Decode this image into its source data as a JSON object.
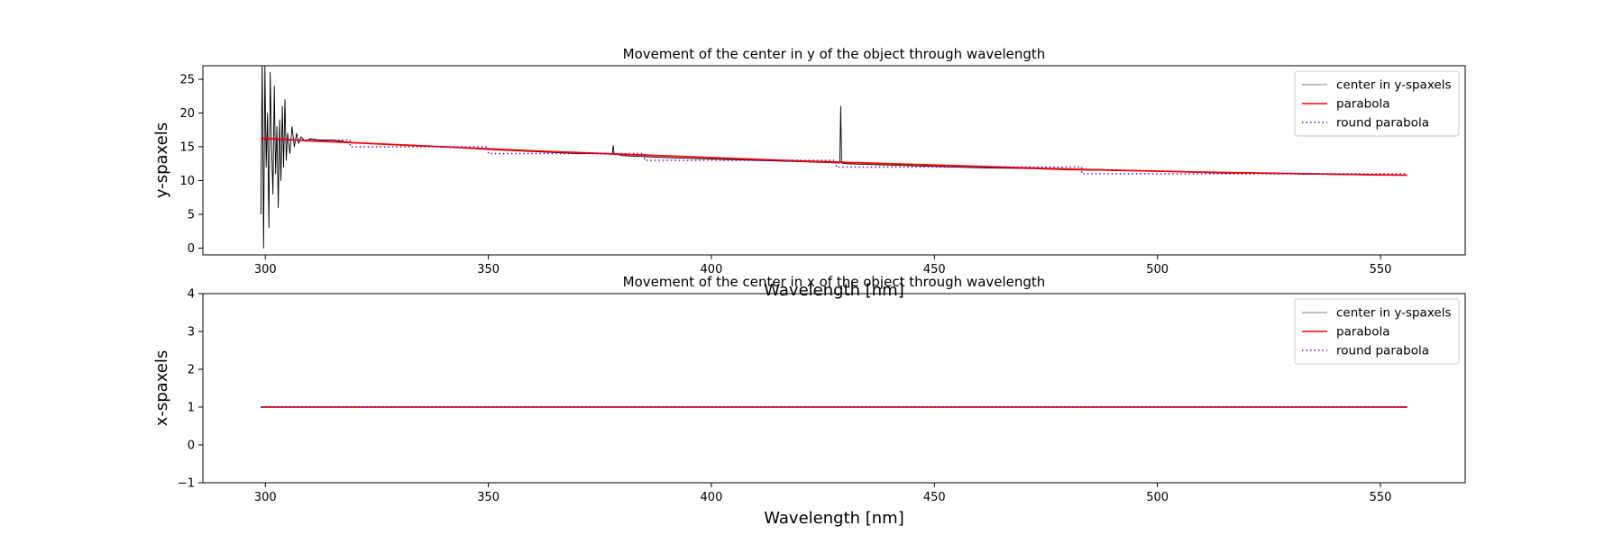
{
  "chart_data": [
    {
      "type": "line",
      "title": "Movement of the center in y of the object through wavelength",
      "xlabel": "Wavelength [nm]",
      "ylabel": "y-spaxels",
      "xlim": [
        286,
        569
      ],
      "ylim": [
        -1,
        27
      ],
      "xticks": [
        300,
        350,
        400,
        450,
        500,
        550
      ],
      "yticks": [
        0,
        5,
        10,
        15,
        20,
        25
      ],
      "grid": false,
      "legend_position": "top-right",
      "series": [
        {
          "name": "center in y-spaxels",
          "color": "#000000",
          "style": "solid",
          "x": [
            299.0,
            299.3,
            299.6,
            299.9,
            300.2,
            300.5,
            300.8,
            301.1,
            301.4,
            301.7,
            302.0,
            302.3,
            302.6,
            302.9,
            303.2,
            303.5,
            303.8,
            304.1,
            304.4,
            304.7,
            305.0,
            305.5,
            306.0,
            306.5,
            307.0,
            307.5,
            308.0,
            309.0,
            310.0,
            312.0,
            315.0,
            320.0,
            330.0,
            340.0,
            350.0,
            360.0,
            370.0,
            377.8,
            378.0,
            378.2,
            380.0,
            390.0,
            400.0,
            410.0,
            420.0,
            428.8,
            429.0,
            429.2,
            430.0,
            440.0,
            450.0,
            460.0,
            470.0,
            480.0,
            490.0,
            500.0,
            510.0,
            515.0,
            520.0,
            530.0,
            540.0,
            550.0,
            556.0
          ],
          "values": [
            5,
            28,
            0,
            27,
            12,
            20,
            3,
            26,
            15,
            8,
            24,
            11,
            18,
            6,
            19,
            10,
            21,
            12,
            22,
            13,
            17,
            14,
            18,
            15,
            17,
            15.5,
            16.5,
            15.8,
            16.2,
            16.0,
            16.0,
            15.6,
            15.3,
            15.0,
            14.6,
            14.3,
            14.0,
            14.0,
            15.2,
            14.0,
            13.7,
            13.4,
            13.2,
            13.0,
            12.8,
            12.6,
            21.0,
            12.6,
            12.5,
            12.3,
            12.1,
            11.9,
            11.8,
            11.6,
            11.5,
            11.4,
            11.2,
            11.1,
            11.1,
            11.0,
            10.9,
            10.8,
            10.8
          ]
        },
        {
          "name": "parabola",
          "color": "#ff0000",
          "style": "solid",
          "x": [
            299,
            310,
            320,
            330,
            340,
            350,
            360,
            370,
            380,
            390,
            400,
            410,
            420,
            430,
            440,
            450,
            460,
            470,
            480,
            490,
            500,
            510,
            520,
            530,
            540,
            550,
            556
          ],
          "values": [
            16.3,
            15.9,
            15.6,
            15.3,
            15.0,
            14.7,
            14.4,
            14.15,
            13.9,
            13.65,
            13.4,
            13.15,
            12.9,
            12.7,
            12.5,
            12.3,
            12.1,
            11.9,
            11.7,
            11.55,
            11.4,
            11.25,
            11.15,
            11.05,
            10.95,
            10.85,
            10.8
          ]
        },
        {
          "name": "round parabola",
          "color": "#6a0dad",
          "style": "dotted",
          "x": [
            299,
            310,
            319,
            319,
            350,
            350,
            385,
            385,
            428,
            428,
            483,
            483,
            556
          ],
          "values": [
            16,
            16,
            16,
            15,
            15,
            14,
            14,
            13,
            13,
            12,
            12,
            11,
            11
          ]
        }
      ]
    },
    {
      "type": "line",
      "title": "Movement of the center in x of the object through wavelength",
      "xlabel": "Wavelength [nm]",
      "ylabel": "x-spaxels",
      "xlim": [
        286,
        569
      ],
      "ylim": [
        -1,
        4
      ],
      "xticks": [
        300,
        350,
        400,
        450,
        500,
        550
      ],
      "yticks": [
        -1,
        0,
        1,
        2,
        3,
        4
      ],
      "grid": false,
      "legend_position": "top-right",
      "series": [
        {
          "name": "center in y-spaxels",
          "color": "#000000",
          "style": "solid",
          "x": [
            299,
            556
          ],
          "values": [
            1,
            1
          ]
        },
        {
          "name": "parabola",
          "color": "#ff0000",
          "style": "solid",
          "x": [
            299,
            556
          ],
          "values": [
            1,
            1
          ]
        },
        {
          "name": "round parabola",
          "color": "#6a0dad",
          "style": "dotted",
          "x": [
            299,
            556
          ],
          "values": [
            1,
            1
          ]
        }
      ]
    }
  ]
}
